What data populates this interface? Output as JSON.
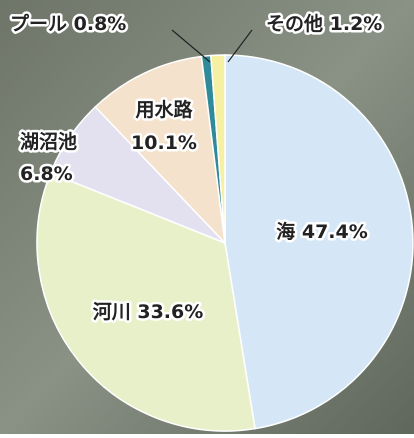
{
  "chart_data": {
    "type": "pie",
    "categories": [
      "海",
      "河川",
      "湖沼池",
      "用水路",
      "プール",
      "その他"
    ],
    "values": [
      47.4,
      33.6,
      6.8,
      10.1,
      0.8,
      1.2
    ],
    "value_labels": [
      "47.4%",
      "33.6%",
      "6.8%",
      "10.1%",
      "0.8%",
      "1.2%"
    ],
    "colors": [
      "#d5e7f6",
      "#e8f0c9",
      "#e3e0f0",
      "#f4e2cc",
      "#2f8a9a",
      "#f6f1a2"
    ]
  }
}
